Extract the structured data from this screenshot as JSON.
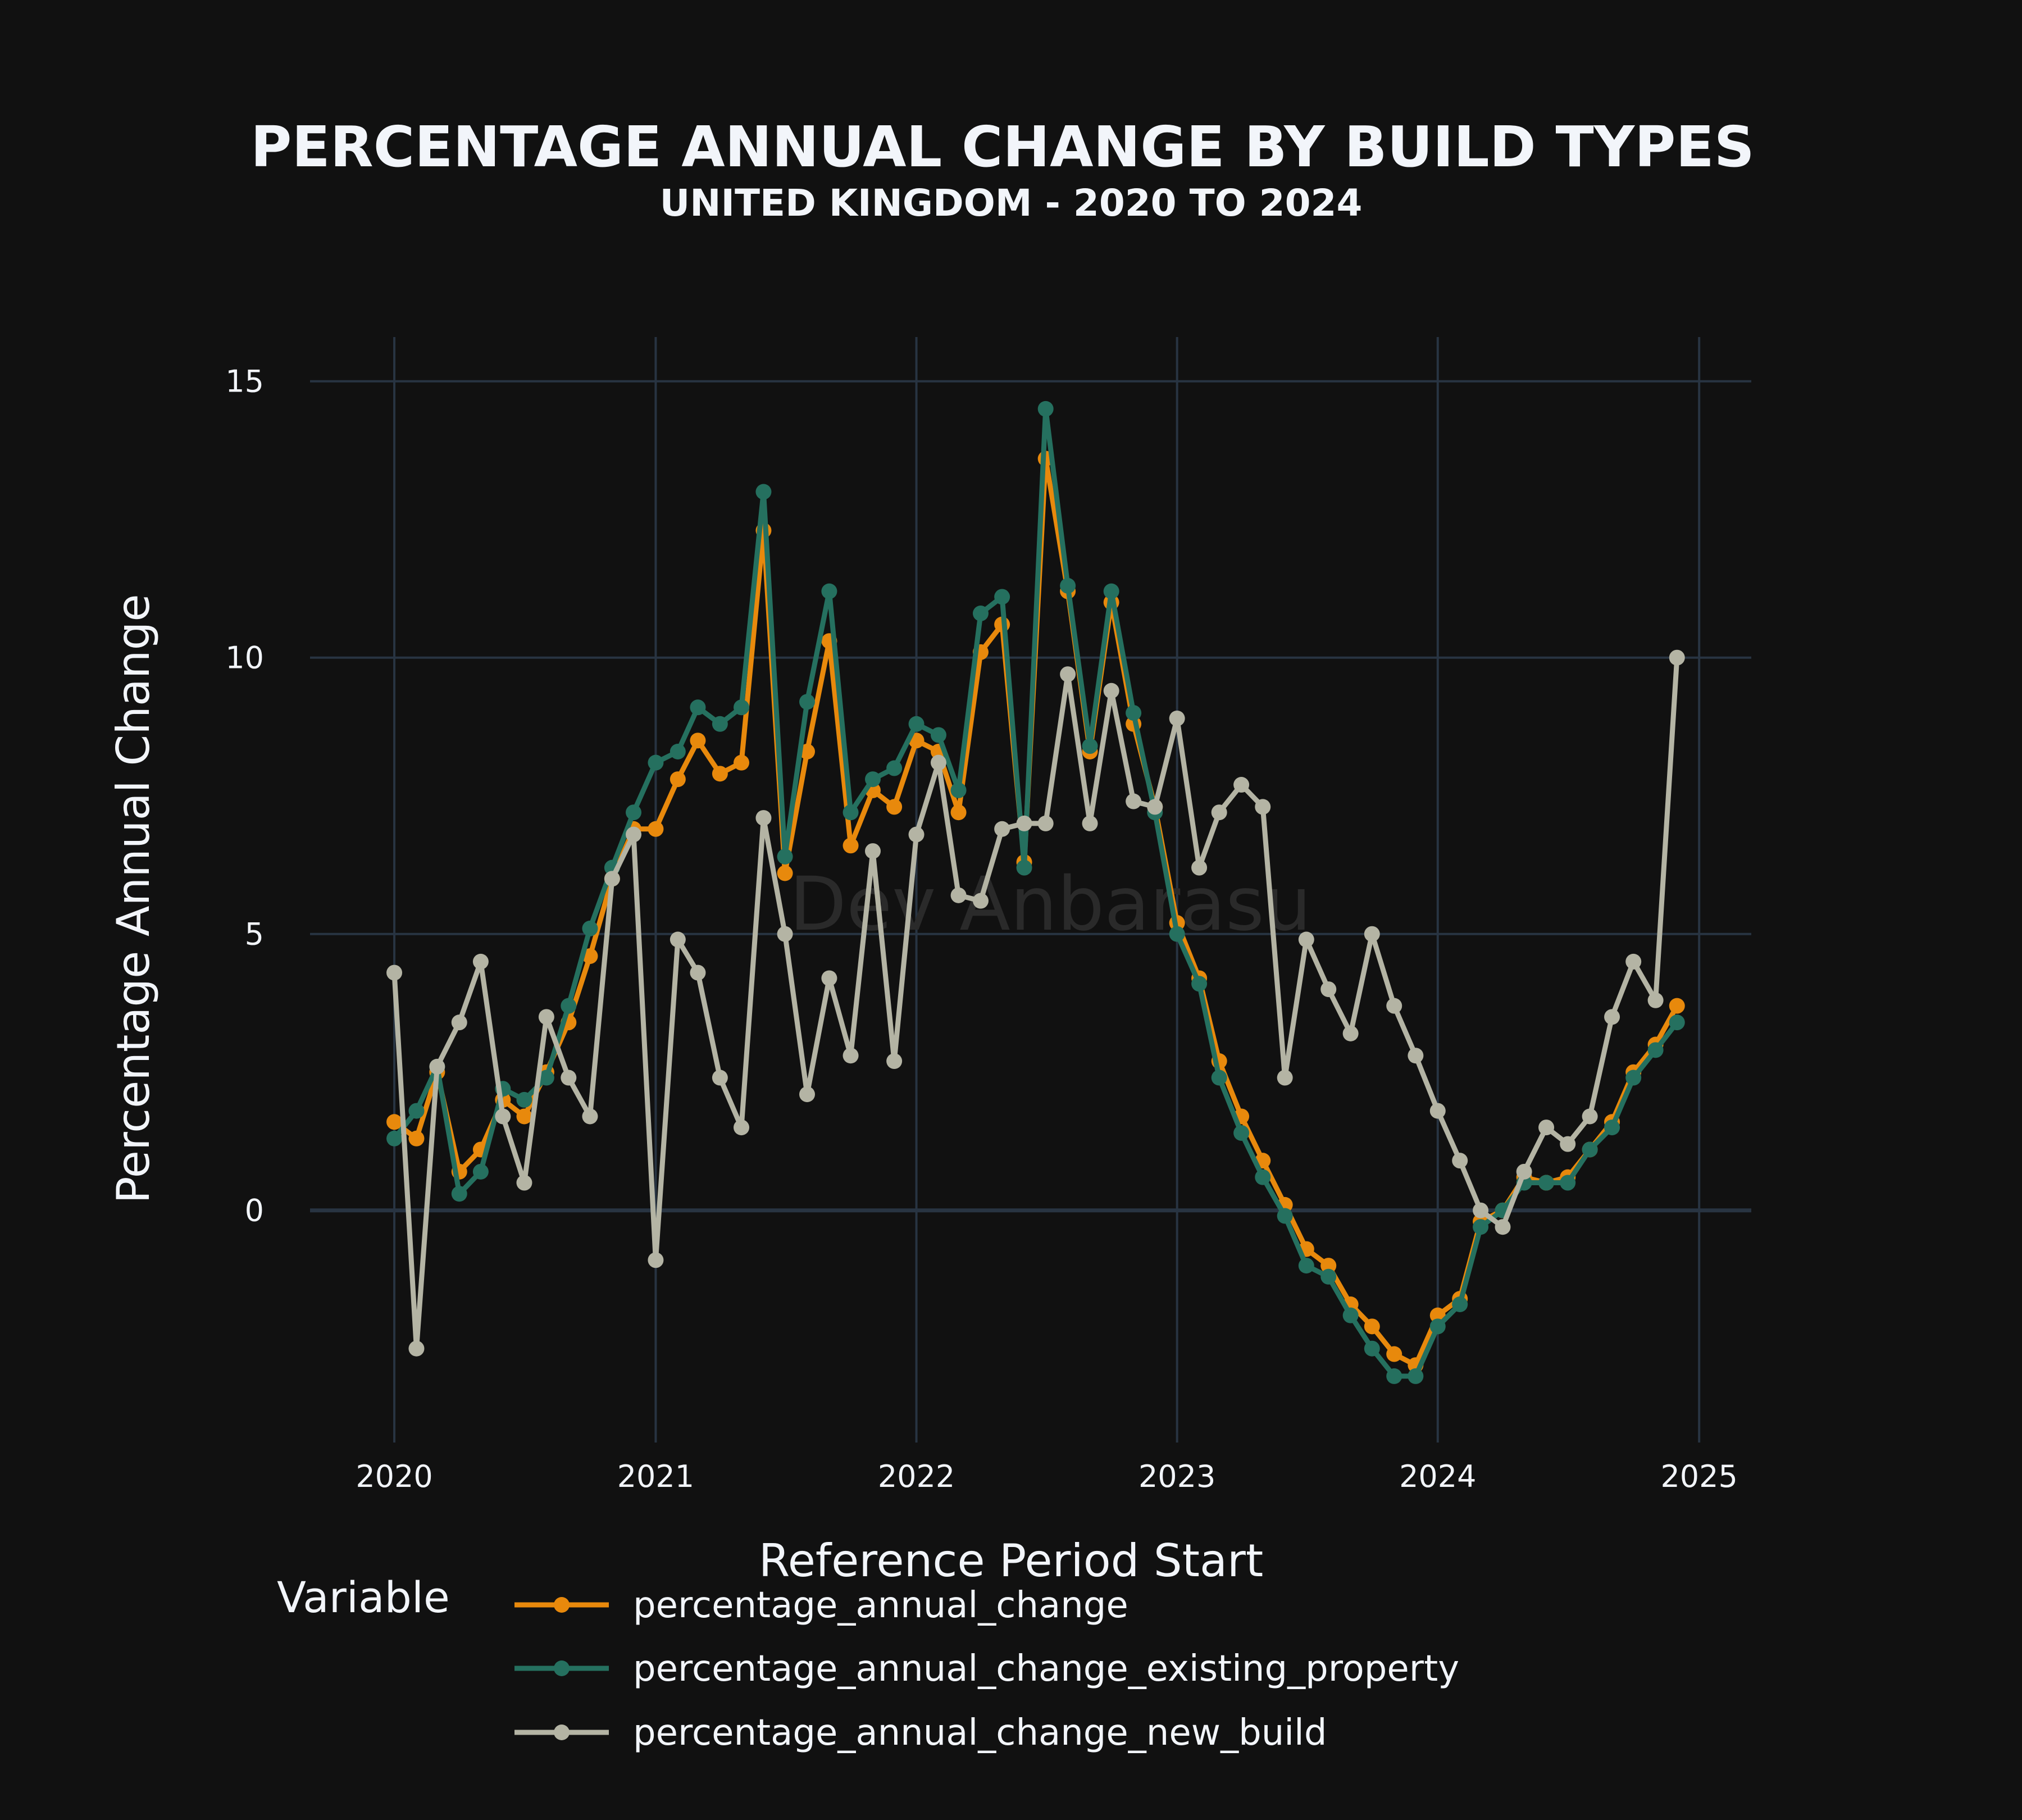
{
  "chart_data": {
    "type": "line",
    "title": "PERCENTAGE ANNUAL CHANGE BY BUILD TYPES",
    "subtitle": "UNITED KINGDOM - 2020 TO 2024",
    "xlabel": "Reference Period Start",
    "ylabel": "Percentage Annual Change",
    "x_ticks": [
      "2020",
      "2021",
      "2022",
      "2023",
      "2024",
      "2025"
    ],
    "y_ticks": [
      "0",
      "5",
      "10",
      "15"
    ],
    "ylim": [
      -4.2,
      15.8
    ],
    "xlim": [
      "2019-09-05",
      "2025-03-15"
    ],
    "grid": true,
    "watermark": "Dev Anbarasu",
    "legend": {
      "title": "Variable",
      "placement": "bottom"
    },
    "x": [
      "2020-01",
      "2020-02",
      "2020-03",
      "2020-04",
      "2020-05",
      "2020-06",
      "2020-07",
      "2020-08",
      "2020-09",
      "2020-10",
      "2020-11",
      "2020-12",
      "2021-01",
      "2021-02",
      "2021-03",
      "2021-04",
      "2021-05",
      "2021-06",
      "2021-07",
      "2021-08",
      "2021-09",
      "2021-10",
      "2021-11",
      "2021-12",
      "2022-01",
      "2022-02",
      "2022-03",
      "2022-04",
      "2022-05",
      "2022-06",
      "2022-07",
      "2022-08",
      "2022-09",
      "2022-10",
      "2022-11",
      "2022-12",
      "2023-01",
      "2023-02",
      "2023-03",
      "2023-04",
      "2023-05",
      "2023-06",
      "2023-07",
      "2023-08",
      "2023-09",
      "2023-10",
      "2023-11",
      "2023-12",
      "2024-01",
      "2024-02",
      "2024-03",
      "2024-04",
      "2024-05",
      "2024-06",
      "2024-07",
      "2024-08",
      "2024-09",
      "2024-10",
      "2024-11",
      "2024-12"
    ],
    "series": [
      {
        "name": "percentage_annual_change",
        "color": "#e8890c",
        "values": [
          1.6,
          1.3,
          2.5,
          0.7,
          1.1,
          2.0,
          1.7,
          2.5,
          3.4,
          4.6,
          6.0,
          6.9,
          6.9,
          7.8,
          8.5,
          7.9,
          8.1,
          12.3,
          6.1,
          8.3,
          10.3,
          6.6,
          7.6,
          7.3,
          8.5,
          8.3,
          7.2,
          10.1,
          10.6,
          6.3,
          13.6,
          11.2,
          8.3,
          11.0,
          8.8,
          7.3,
          5.2,
          4.2,
          2.7,
          1.7,
          0.9,
          0.1,
          -0.7,
          -1.0,
          -1.7,
          -2.1,
          -2.6,
          -2.8,
          -1.9,
          -1.6,
          -0.2,
          0.0,
          0.6,
          0.5,
          0.6,
          1.1,
          1.6,
          2.5,
          3.0,
          3.7
        ]
      },
      {
        "name": "percentage_annual_change_existing_property",
        "color": "#25705f",
        "values": [
          1.3,
          1.8,
          2.6,
          0.3,
          0.7,
          2.2,
          2.0,
          2.4,
          3.7,
          5.1,
          6.2,
          7.2,
          8.1,
          8.3,
          9.1,
          8.8,
          9.1,
          13.0,
          6.4,
          9.2,
          11.2,
          7.2,
          7.8,
          8.0,
          8.8,
          8.6,
          7.6,
          10.8,
          11.1,
          6.2,
          14.5,
          11.3,
          8.4,
          11.2,
          9.0,
          7.2,
          5.0,
          4.1,
          2.4,
          1.4,
          0.6,
          -0.1,
          -1.0,
          -1.2,
          -1.9,
          -2.5,
          -3.0,
          -3.0,
          -2.1,
          -1.7,
          -0.3,
          0.0,
          0.5,
          0.5,
          0.5,
          1.1,
          1.5,
          2.4,
          2.9,
          3.4
        ]
      },
      {
        "name": "percentage_annual_change_new_build",
        "color": "#b4b4a4",
        "values": [
          4.3,
          -2.5,
          2.6,
          3.4,
          4.5,
          1.7,
          0.5,
          3.5,
          2.4,
          1.7,
          6.0,
          6.8,
          -0.9,
          4.9,
          4.3,
          2.4,
          1.5,
          7.1,
          5.0,
          2.1,
          4.2,
          2.8,
          6.5,
          2.7,
          6.8,
          8.1,
          5.7,
          5.6,
          6.9,
          7.0,
          7.0,
          9.7,
          7.0,
          9.4,
          7.4,
          7.3,
          8.9,
          6.2,
          7.2,
          7.7,
          7.3,
          2.4,
          4.9,
          4.0,
          3.2,
          5.0,
          3.7,
          2.8,
          1.8,
          0.9,
          0.0,
          -0.3,
          0.7,
          1.5,
          1.2,
          1.7,
          3.5,
          4.5,
          3.8,
          10.0
        ]
      }
    ]
  }
}
